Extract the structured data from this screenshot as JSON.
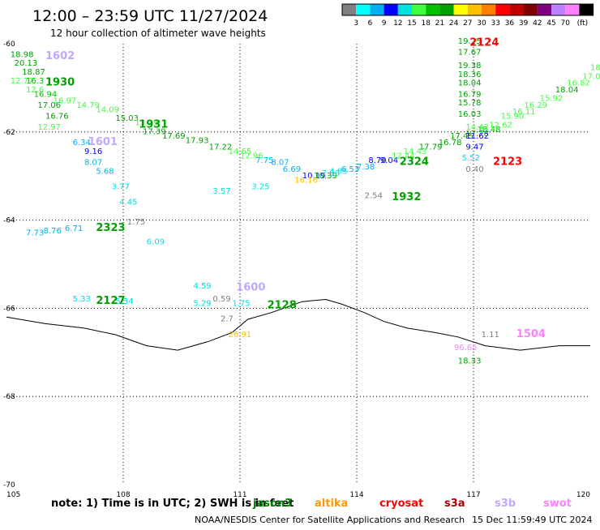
{
  "header": {
    "title": "12:00 – 23:59 UTC 11/27/2024",
    "subtitle": "12 hour collection of altimeter wave heights"
  },
  "colorbar": {
    "colors": [
      "#7f7f7f",
      "#00ffff",
      "#00b0f0",
      "#0000ff",
      "#00e0e0",
      "#40ff40",
      "#00c000",
      "#00a000",
      "#ffff00",
      "#ffc000",
      "#ff8000",
      "#ff0000",
      "#c00000",
      "#800000",
      "#800080",
      "#c080ff",
      "#ff80ff",
      "#000000"
    ],
    "labels": [
      "3",
      "6",
      "9",
      "12",
      "15",
      "18",
      "21",
      "24",
      "27",
      "30",
      "33",
      "36",
      "39",
      "42",
      "45",
      "70"
    ],
    "unit": "(ft)"
  },
  "map": {
    "lon_range": [
      105,
      120
    ],
    "lat_range": [
      -70,
      -60
    ],
    "x_ticks": [
      "105",
      "108",
      "111",
      "114",
      "117",
      "120"
    ],
    "y_ticks": [
      "-60",
      "-62",
      "-64",
      "-66",
      "-68",
      "-70"
    ],
    "grid": "dotted",
    "coastline": [
      [
        105,
        -66.2
      ],
      [
        106,
        -66.35
      ],
      [
        107,
        -66.45
      ],
      [
        107.8,
        -66.6
      ],
      [
        108.6,
        -66.85
      ],
      [
        109.4,
        -66.95
      ],
      [
        110.2,
        -66.75
      ],
      [
        110.8,
        -66.55
      ],
      [
        111.2,
        -66.25
      ],
      [
        111.8,
        -66.1
      ],
      [
        112.6,
        -65.85
      ],
      [
        113.2,
        -65.8
      ],
      [
        113.6,
        -65.9
      ],
      [
        114.2,
        -66.1
      ],
      [
        114.7,
        -66.3
      ],
      [
        115.3,
        -66.45
      ],
      [
        116,
        -66.55
      ],
      [
        116.6,
        -66.65
      ],
      [
        117.3,
        -66.85
      ],
      [
        118.2,
        -66.95
      ],
      [
        119.2,
        -66.85
      ],
      [
        120,
        -66.85
      ]
    ],
    "satellite_colors": {
      "jason3": "#008000",
      "altika": "#ff9900",
      "cryosat": "#ff0000",
      "s3a": "#b00000",
      "s3b": "#c0a8ff",
      "swot": "#ff80ff"
    }
  },
  "points": [
    {
      "lon": 105.1,
      "lat": -60.3,
      "v": "18.98",
      "c": "#00a000"
    },
    {
      "lon": 105.2,
      "lat": -60.5,
      "v": "20.13",
      "c": "#00a000"
    },
    {
      "lon": 105.4,
      "lat": -60.7,
      "v": "18.87",
      "c": "#00a000"
    },
    {
      "lon": 105.1,
      "lat": -60.9,
      "v": "12.77",
      "c": "#40ff40"
    },
    {
      "lon": 105.5,
      "lat": -60.9,
      "v": "16.3",
      "c": "#00c000"
    },
    {
      "lon": 105.5,
      "lat": -61.1,
      "v": "12.6",
      "c": "#40ff40"
    },
    {
      "lon": 105.7,
      "lat": -61.2,
      "v": "16.94",
      "c": "#00c000"
    },
    {
      "lon": 106.2,
      "lat": -61.35,
      "v": "16.97",
      "c": "#40ff40"
    },
    {
      "lon": 105.8,
      "lat": -61.45,
      "v": "17.06",
      "c": "#00a000"
    },
    {
      "lon": 106.8,
      "lat": -61.45,
      "v": "14.79",
      "c": "#40ff40"
    },
    {
      "lon": 107.3,
      "lat": -61.55,
      "v": "14.09",
      "c": "#40ff40"
    },
    {
      "lon": 106.0,
      "lat": -61.7,
      "v": "16.76",
      "c": "#00a000"
    },
    {
      "lon": 105.8,
      "lat": -61.95,
      "v": "12.97",
      "c": "#40ff40"
    },
    {
      "lon": 107.8,
      "lat": -61.75,
      "v": "15.03",
      "c": "#00a000"
    },
    {
      "lon": 108.3,
      "lat": -61.85,
      "v": "13.29",
      "c": "#40ff40"
    },
    {
      "lon": 108.5,
      "lat": -62.05,
      "v": "17.39",
      "c": "#00a000"
    },
    {
      "lon": 109.0,
      "lat": -62.15,
      "v": "17.69",
      "c": "#00a000"
    },
    {
      "lon": 109.6,
      "lat": -62.25,
      "v": "17.93",
      "c": "#00a000"
    },
    {
      "lon": 110.2,
      "lat": -62.4,
      "v": "17.22",
      "c": "#00a000"
    },
    {
      "lon": 110.7,
      "lat": -62.5,
      "v": "14.65",
      "c": "#40ff40"
    },
    {
      "lon": 111.0,
      "lat": -62.6,
      "v": "12.96",
      "c": "#40ff40"
    },
    {
      "lon": 111.4,
      "lat": -62.7,
      "v": "7.75",
      "c": "#00b0f0"
    },
    {
      "lon": 111.8,
      "lat": -62.75,
      "v": "8.07",
      "c": "#00b0f0"
    },
    {
      "lon": 112.1,
      "lat": -62.9,
      "v": "6.69",
      "c": "#00b0f0"
    },
    {
      "lon": 112.6,
      "lat": -63.05,
      "v": "10.19",
      "c": "#0000ff"
    },
    {
      "lon": 112.9,
      "lat": -63.05,
      "v": "10.39",
      "c": "#00a000"
    },
    {
      "lon": 112.4,
      "lat": -63.15,
      "v": "16.16",
      "c": "#ffc000"
    },
    {
      "lon": 113.1,
      "lat": -63.0,
      "v": "7.30",
      "c": "#00e0e0"
    },
    {
      "lon": 113.3,
      "lat": -62.95,
      "v": "4.85",
      "c": "#00e0e0"
    },
    {
      "lon": 113.6,
      "lat": -62.9,
      "v": "6.53",
      "c": "#00b0f0"
    },
    {
      "lon": 114.0,
      "lat": -62.85,
      "v": "7.38",
      "c": "#00b0f0"
    },
    {
      "lon": 114.3,
      "lat": -62.7,
      "v": "8.70",
      "c": "#0000ff"
    },
    {
      "lon": 114.6,
      "lat": -62.7,
      "v": "9.04",
      "c": "#0000ff"
    },
    {
      "lon": 114.9,
      "lat": -62.6,
      "v": "12.44",
      "c": "#40ff40"
    },
    {
      "lon": 115.2,
      "lat": -62.5,
      "v": "14.43",
      "c": "#40ff40"
    },
    {
      "lon": 115.6,
      "lat": -62.4,
      "v": "17.79",
      "c": "#00a000"
    },
    {
      "lon": 116.1,
      "lat": -62.3,
      "v": "16.78",
      "c": "#00a000"
    },
    {
      "lon": 116.4,
      "lat": -62.15,
      "v": "17.45",
      "c": "#00a000"
    },
    {
      "lon": 116.8,
      "lat": -62.1,
      "v": "17.78",
      "c": "#00c000"
    },
    {
      "lon": 117.1,
      "lat": -62.0,
      "v": "18.48",
      "c": "#00c000"
    },
    {
      "lon": 117.4,
      "lat": -61.9,
      "v": "12.62",
      "c": "#40ff40"
    },
    {
      "lon": 117.7,
      "lat": -61.7,
      "v": "15.90",
      "c": "#40ff40"
    },
    {
      "lon": 118.0,
      "lat": -61.6,
      "v": "16.11",
      "c": "#40ff40"
    },
    {
      "lon": 118.3,
      "lat": -61.45,
      "v": "16.29",
      "c": "#40ff40"
    },
    {
      "lon": 118.7,
      "lat": -61.3,
      "v": "15.92",
      "c": "#40ff40"
    },
    {
      "lon": 119.1,
      "lat": -61.1,
      "v": "18.04",
      "c": "#00a000"
    },
    {
      "lon": 119.4,
      "lat": -60.95,
      "v": "16.82",
      "c": "#40ff40"
    },
    {
      "lon": 119.8,
      "lat": -60.8,
      "v": "17.01",
      "c": "#40ff40"
    },
    {
      "lon": 120.0,
      "lat": -60.6,
      "v": "18.",
      "c": "#40ff40"
    },
    {
      "lon": 116.6,
      "lat": -60.0,
      "v": "19.25",
      "c": "#00a000"
    },
    {
      "lon": 116.6,
      "lat": -60.25,
      "v": "17.67",
      "c": "#00a000"
    },
    {
      "lon": 116.6,
      "lat": -60.55,
      "v": "19.38",
      "c": "#00a000"
    },
    {
      "lon": 116.6,
      "lat": -60.75,
      "v": "18.36",
      "c": "#00a000"
    },
    {
      "lon": 116.6,
      "lat": -60.95,
      "v": "18.04",
      "c": "#00a000"
    },
    {
      "lon": 116.6,
      "lat": -61.2,
      "v": "16.79",
      "c": "#00a000"
    },
    {
      "lon": 116.6,
      "lat": -61.4,
      "v": "15.78",
      "c": "#00a000"
    },
    {
      "lon": 116.6,
      "lat": -61.65,
      "v": "16.03",
      "c": "#00a000"
    },
    {
      "lon": 116.8,
      "lat": -61.95,
      "v": "14.42",
      "c": "#40ff40"
    },
    {
      "lon": 116.8,
      "lat": -62.15,
      "v": "11.62",
      "c": "#0000ff"
    },
    {
      "lon": 116.8,
      "lat": -62.4,
      "v": "9.47",
      "c": "#0000ff"
    },
    {
      "lon": 116.7,
      "lat": -62.65,
      "v": "5.52",
      "c": "#00e0e0"
    },
    {
      "lon": 116.8,
      "lat": -62.9,
      "v": "0.40",
      "c": "#7f7f7f"
    },
    {
      "lon": 106.7,
      "lat": -62.3,
      "v": "6.34",
      "c": "#00b0f0"
    },
    {
      "lon": 107.0,
      "lat": -62.5,
      "v": "9.16",
      "c": "#0000ff"
    },
    {
      "lon": 107.0,
      "lat": -62.75,
      "v": "8.07",
      "c": "#00b0f0"
    },
    {
      "lon": 107.3,
      "lat": -62.95,
      "v": "5.68",
      "c": "#00b0f0"
    },
    {
      "lon": 107.7,
      "lat": -63.3,
      "v": "3.77",
      "c": "#00e0e0"
    },
    {
      "lon": 107.9,
      "lat": -63.65,
      "v": "4.45",
      "c": "#00e0e0"
    },
    {
      "lon": 110.3,
      "lat": -63.4,
      "v": "3.57",
      "c": "#00e0e0"
    },
    {
      "lon": 111.3,
      "lat": -63.3,
      "v": "3.25",
      "c": "#00e0e0"
    },
    {
      "lon": 114.2,
      "lat": -63.5,
      "v": "2.54",
      "c": "#7f7f7f"
    },
    {
      "lon": 105.5,
      "lat": -64.35,
      "v": "7.73",
      "c": "#00b0f0"
    },
    {
      "lon": 105.95,
      "lat": -64.3,
      "v": "8.76",
      "c": "#00b0f0"
    },
    {
      "lon": 106.5,
      "lat": -64.25,
      "v": "6.71",
      "c": "#00b0f0"
    },
    {
      "lon": 108.1,
      "lat": -64.1,
      "v": "1.75",
      "c": "#7f7f7f"
    },
    {
      "lon": 108.6,
      "lat": -64.55,
      "v": "6.09",
      "c": "#00e0e0"
    },
    {
      "lon": 106.7,
      "lat": -65.85,
      "v": "5.33",
      "c": "#00e0e0"
    },
    {
      "lon": 107.8,
      "lat": -65.9,
      "v": "5.34",
      "c": "#00e0e0"
    },
    {
      "lon": 109.8,
      "lat": -65.55,
      "v": "4.59",
      "c": "#00e0e0"
    },
    {
      "lon": 109.8,
      "lat": -65.95,
      "v": "5.29",
      "c": "#00e0e0"
    },
    {
      "lon": 110.3,
      "lat": -65.85,
      "v": "0.59",
      "c": "#7f7f7f"
    },
    {
      "lon": 110.8,
      "lat": -65.95,
      "v": "1.75",
      "c": "#00e0e0"
    },
    {
      "lon": 110.5,
      "lat": -66.3,
      "v": "2.7",
      "c": "#7f7f7f"
    },
    {
      "lon": 110.7,
      "lat": -66.65,
      "v": "26.91",
      "c": "#ffc000"
    },
    {
      "lon": 117.2,
      "lat": -66.65,
      "v": "1.11",
      "c": "#7f7f7f"
    },
    {
      "lon": 116.5,
      "lat": -66.95,
      "v": "96.65",
      "c": "#ff80ff"
    },
    {
      "lon": 116.6,
      "lat": -67.25,
      "v": "18.33",
      "c": "#00a000"
    }
  ],
  "passes": [
    {
      "lon": 106.0,
      "lat": -60.35,
      "label": "1602",
      "c": "#c0a8ff"
    },
    {
      "lon": 106.0,
      "lat": -60.95,
      "label": "1930",
      "c": "#00a000"
    },
    {
      "lon": 108.4,
      "lat": -61.9,
      "label": "1931",
      "c": "#00a000"
    },
    {
      "lon": 107.1,
      "lat": -62.3,
      "label": "1601",
      "c": "#c0a8ff"
    },
    {
      "lon": 116.9,
      "lat": -60.05,
      "label": "2124",
      "c": "#ff0000"
    },
    {
      "lon": 115.1,
      "lat": -62.75,
      "label": "2324",
      "c": "#00a000"
    },
    {
      "lon": 117.5,
      "lat": -62.75,
      "label": "2123",
      "c": "#ff0000"
    },
    {
      "lon": 114.9,
      "lat": -63.55,
      "label": "1932",
      "c": "#00a000"
    },
    {
      "lon": 107.3,
      "lat": -64.25,
      "label": "2323",
      "c": "#00a000"
    },
    {
      "lon": 110.9,
      "lat": -65.6,
      "label": "1600",
      "c": "#c0a8ff"
    },
    {
      "lon": 107.3,
      "lat": -65.9,
      "label": "2127",
      "c": "#00a000"
    },
    {
      "lon": 111.7,
      "lat": -66.0,
      "label": "2128",
      "c": "#00a000"
    },
    {
      "lon": 118.1,
      "lat": -66.65,
      "label": "1504",
      "c": "#ff80ff"
    }
  ],
  "footer": {
    "note_prefix": "note:  1) Time is in UTC; 2) SWH is in feet",
    "satellites": [
      {
        "key": "jason3",
        "label": "jason3"
      },
      {
        "key": "altika",
        "label": "altika"
      },
      {
        "key": "cryosat",
        "label": "cryosat"
      },
      {
        "key": "s3a",
        "label": "s3a"
      },
      {
        "key": "s3b",
        "label": "s3b"
      },
      {
        "key": "swot",
        "label": "swot"
      }
    ],
    "credit": "NOAA/NESDIS Center for Satellite Applications and Research",
    "timestamp": "15 Dec 11:59:49 UTC 2024"
  }
}
